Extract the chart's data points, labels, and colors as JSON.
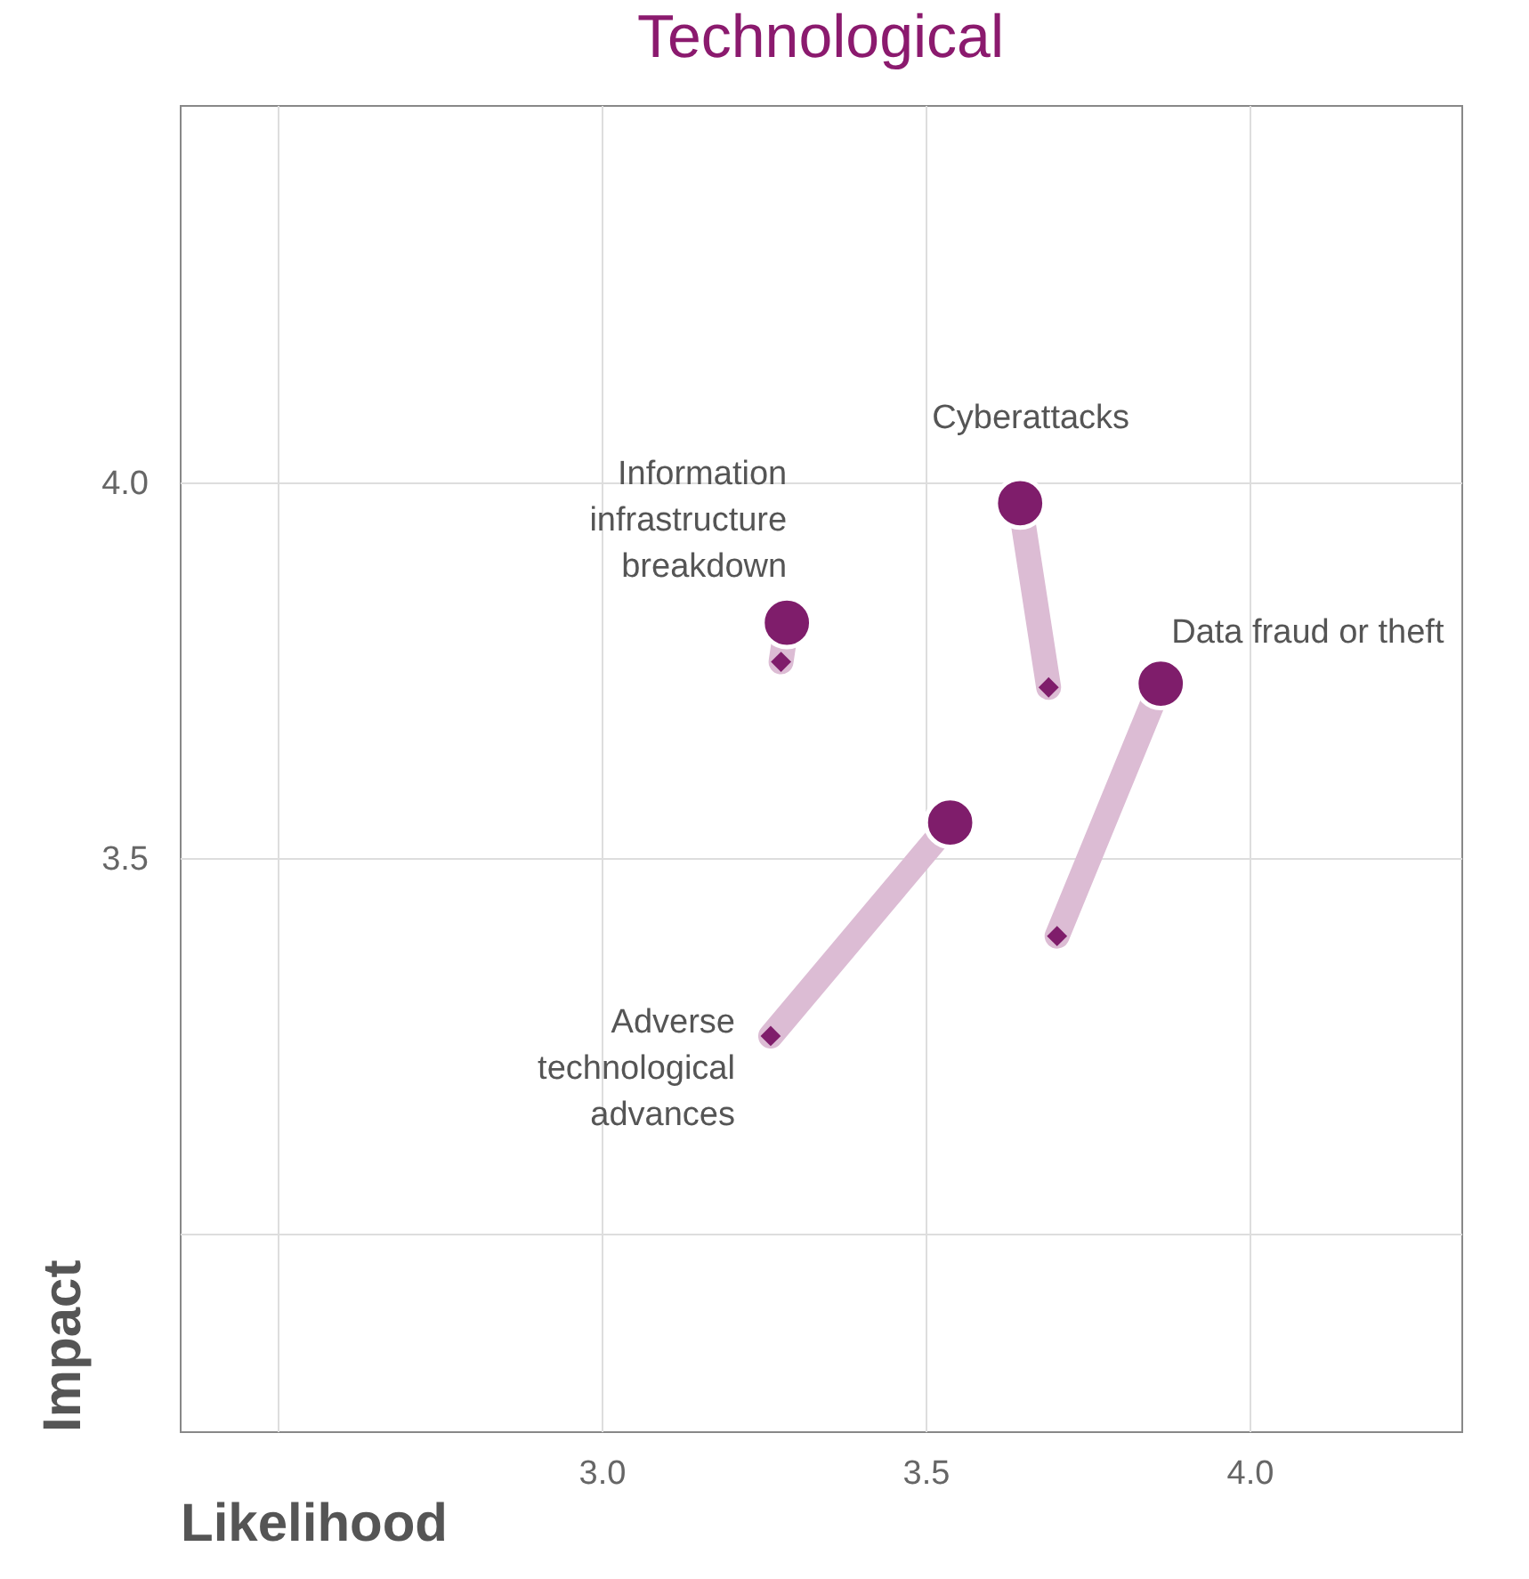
{
  "chart_data": {
    "type": "scatter",
    "title": "Technological",
    "xlabel": "Likelihood",
    "ylabel": "Impact",
    "xlim": [
      2.349,
      4.327
    ],
    "ylim": [
      2.737,
      4.502
    ],
    "xticks": [
      {
        "value": 2.5,
        "label": null
      },
      {
        "value": 3,
        "label": "3.0"
      },
      {
        "value": 3.5,
        "label": "3.5"
      },
      {
        "value": 4,
        "label": "4.0"
      }
    ],
    "yticks": [
      {
        "value": 3,
        "label": null
      },
      {
        "value": 3.5,
        "label": "3.5"
      },
      {
        "value": 4,
        "label": "4.0"
      }
    ],
    "grid": true,
    "series": [
      {
        "type": "line",
        "color": "#dcbcd4",
        "x": [
          3.277,
          3.286
        ],
        "values": [
          3.761,
          3.813
        ]
      },
      {
        "type": "line",
        "color": "#dcbcd4",
        "x": [
          3.69,
          3.646
        ],
        "values": [
          3.727,
          3.972
        ]
      },
      {
        "type": "line",
        "color": "#dcbcd4",
        "x": [
          3.703,
          3.863
        ],
        "values": [
          3.396,
          3.732
        ]
      },
      {
        "type": "line",
        "color": "#dcbcd4",
        "x": [
          3.261,
          3.538
        ],
        "values": [
          3.263,
          3.547
        ]
      },
      {
        "marker": "diamond",
        "color": "#7f1d6b",
        "x": [
          3.277,
          3.69,
          3.703,
          3.261
        ],
        "values": [
          3.761,
          3.727,
          3.396,
          3.263
        ]
      },
      {
        "marker": "circle",
        "color": "#7f1d6b",
        "x": [
          3.286,
          3.646,
          3.863,
          3.538
        ],
        "values": [
          3.813,
          3.972,
          3.732,
          3.547
        ]
      }
    ],
    "annotations": [
      {
        "text": "Information infrastructure breakdown",
        "x": 3.286,
        "y": 3.813
      },
      {
        "text": "Cyberattacks",
        "x": 3.646,
        "y": 3.972
      },
      {
        "text": "Data fraud or theft",
        "x": 3.863,
        "y": 3.732
      },
      {
        "text": "Adverse technological advances",
        "x": 3.261,
        "y": 3.263
      }
    ]
  }
}
